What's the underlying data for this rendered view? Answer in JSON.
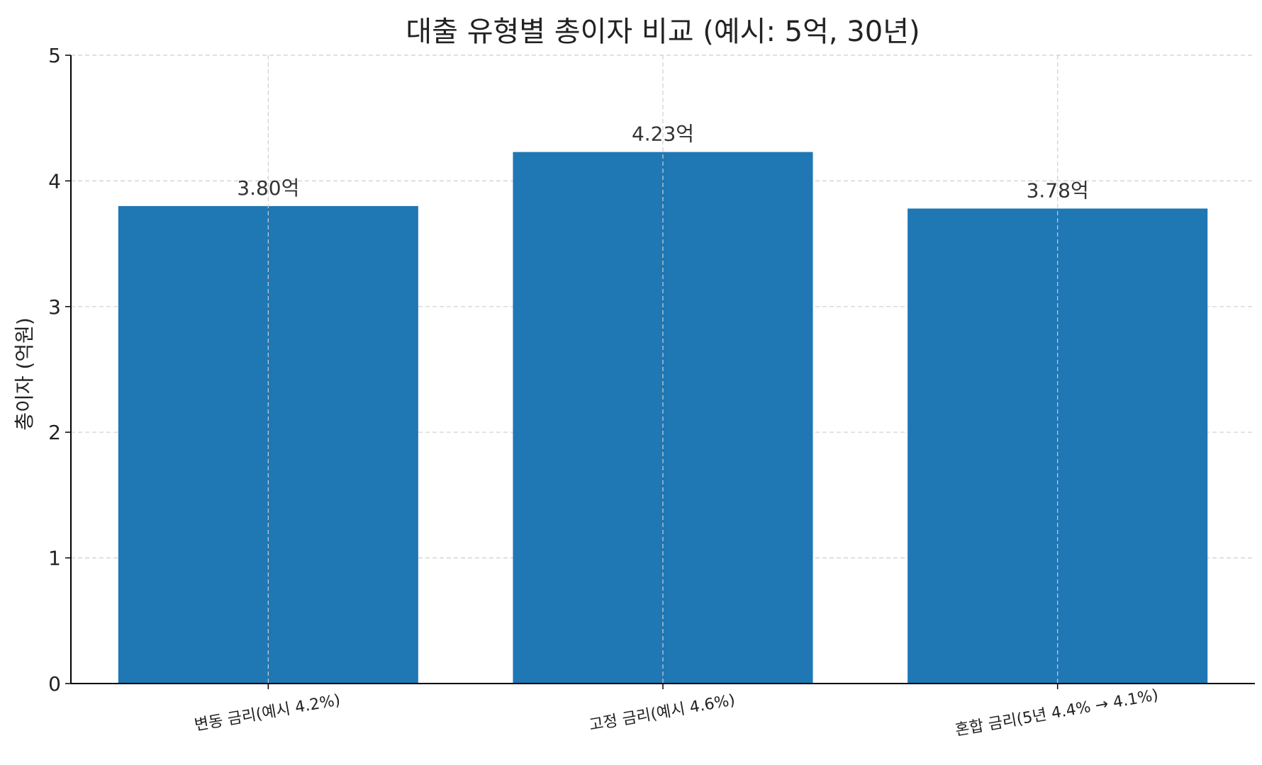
{
  "chart_data": {
    "type": "bar",
    "title": "대출 유형별 총이자 비교 (예시: 5억, 30년)",
    "ylabel": "총이자 (억원)",
    "xlabel": "",
    "ylim": [
      0,
      5
    ],
    "yticks": [
      0,
      1,
      2,
      3,
      4,
      5
    ],
    "grid": true,
    "categories": [
      "변동 금리(예시 4.2%)",
      "고정 금리(예시 4.6%)",
      "혼합 금리(5년 4.4% → 4.1%)"
    ],
    "values": [
      3.8,
      4.23,
      3.78
    ],
    "data_labels": [
      "3.80억",
      "4.23억",
      "3.78억"
    ],
    "bar_color": "#1f77b4"
  }
}
